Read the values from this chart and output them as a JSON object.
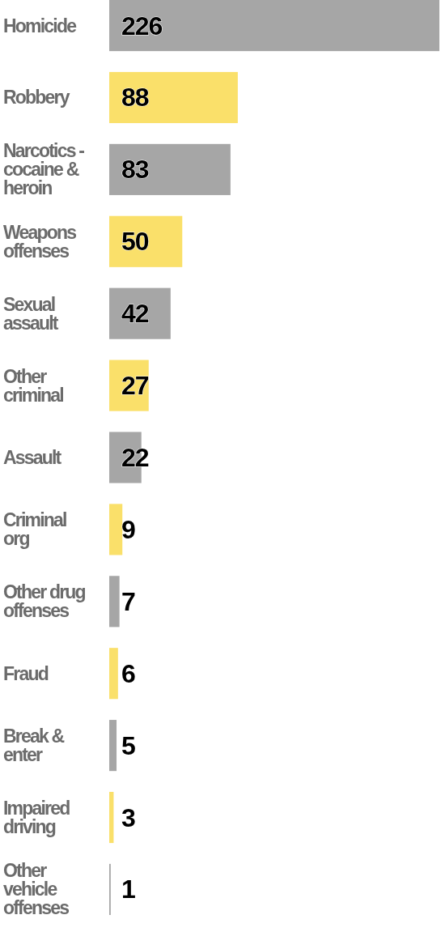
{
  "chart_data": {
    "type": "bar",
    "orientation": "horizontal",
    "data_labels": true,
    "categories": [
      "Homicide",
      "Robbery",
      "Narcotics - cocaine & heroin",
      "Weapons offenses",
      "Sexual assault",
      "Other criminal",
      "Assault",
      "Criminal org",
      "Other drug offenses",
      "Fraud",
      "Break & enter",
      "Impaired driving",
      "Other vehicle offenses"
    ],
    "values": [
      226,
      88,
      83,
      50,
      42,
      27,
      22,
      9,
      7,
      6,
      5,
      3,
      1
    ],
    "colors": [
      "#a6a6a6",
      "#fae06a",
      "#a6a6a6",
      "#fae06a",
      "#a6a6a6",
      "#fae06a",
      "#a6a6a6",
      "#fae06a",
      "#a6a6a6",
      "#fae06a",
      "#a6a6a6",
      "#fae06a",
      "#a6a6a6"
    ]
  }
}
